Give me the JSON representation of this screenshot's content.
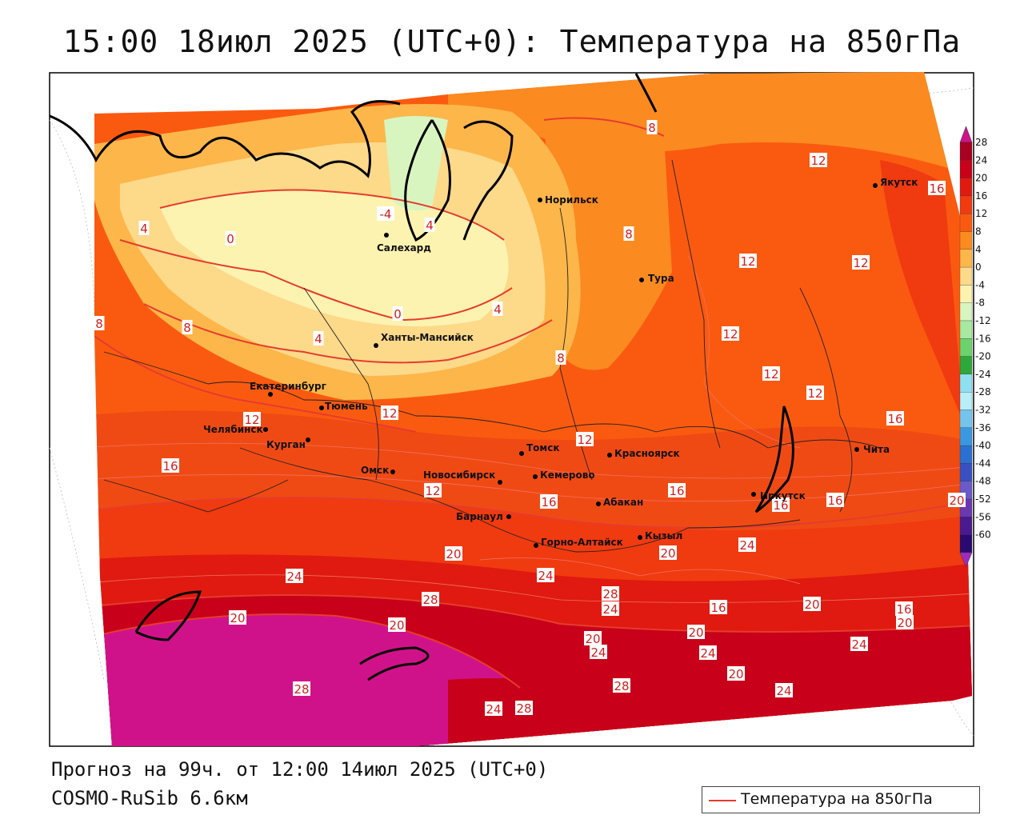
{
  "title": "15:00 18июл 2025 (UTC+0): Температура на 850гПа",
  "forecast_text": "Прогноз на 99ч. от 12:00 14июл 2025 (UTC+0)",
  "model_text": "COSMO-RuSib 6.6км",
  "legend_label": "Температура на 850гПа",
  "colors": {
    "contour": "#e63b2e",
    "label": "#d02020"
  },
  "colorbar": {
    "ticks": [
      "28",
      "24",
      "20",
      "16",
      "12",
      "8",
      "4",
      "0",
      "-4",
      "-8",
      "-12",
      "-16",
      "-20",
      "-24",
      "-28",
      "-32",
      "-36",
      "-40",
      "-44",
      "-48",
      "-52",
      "-56",
      "-60"
    ],
    "colors": [
      "#a80020",
      "#c8001a",
      "#e01a10",
      "#f03a10",
      "#fa5a10",
      "#fb8a20",
      "#fdb64a",
      "#fdd98a",
      "#fcf3b0",
      "#d8f5c0",
      "#a8e8a0",
      "#6cd26c",
      "#2ea83a",
      "#8ee0f0",
      "#b8eef8",
      "#74c4ee",
      "#3a98e0",
      "#2a70d0",
      "#3a50c0",
      "#6a5ac8",
      "#6a38b0",
      "#4a1a90",
      "#2a0a70"
    ],
    "top_arrow_color": "#d0128a",
    "bottom_arrow_color": "#a02ac0"
  },
  "cities": [
    {
      "name": "Норильск"
    },
    {
      "name": "Якутск"
    },
    {
      "name": "Салехард"
    },
    {
      "name": "Тура"
    },
    {
      "name": "Ханты-Мансийск"
    },
    {
      "name": "Екатеринбург"
    },
    {
      "name": "Тюмень"
    },
    {
      "name": "Челябинск"
    },
    {
      "name": "Курган"
    },
    {
      "name": "Томск"
    },
    {
      "name": "Красноярск"
    },
    {
      "name": "Омск"
    },
    {
      "name": "Новосибирск"
    },
    {
      "name": "Кемерово"
    },
    {
      "name": "Чита"
    },
    {
      "name": "Абакан"
    },
    {
      "name": "Иркутск"
    },
    {
      "name": "Барнаул"
    },
    {
      "name": "Кызыл"
    },
    {
      "name": "Горно-Алтайск"
    }
  ],
  "isotherm_labels": [
    "8",
    "12",
    "16",
    "-4",
    "4",
    "4",
    "0",
    "8",
    "8",
    "12",
    "12",
    "12",
    "12",
    "16",
    "8",
    "4",
    "4",
    "0",
    "8",
    "12",
    "12",
    "12",
    "16",
    "12",
    "12",
    "16",
    "16",
    "16",
    "16",
    "20",
    "20",
    "24",
    "28",
    "20",
    "24",
    "20",
    "24",
    "28",
    "24",
    "28",
    "24",
    "20",
    "20",
    "16",
    "20",
    "20",
    "16",
    "20",
    "24",
    "24",
    "20",
    "24",
    "28",
    "28",
    "24"
  ]
}
